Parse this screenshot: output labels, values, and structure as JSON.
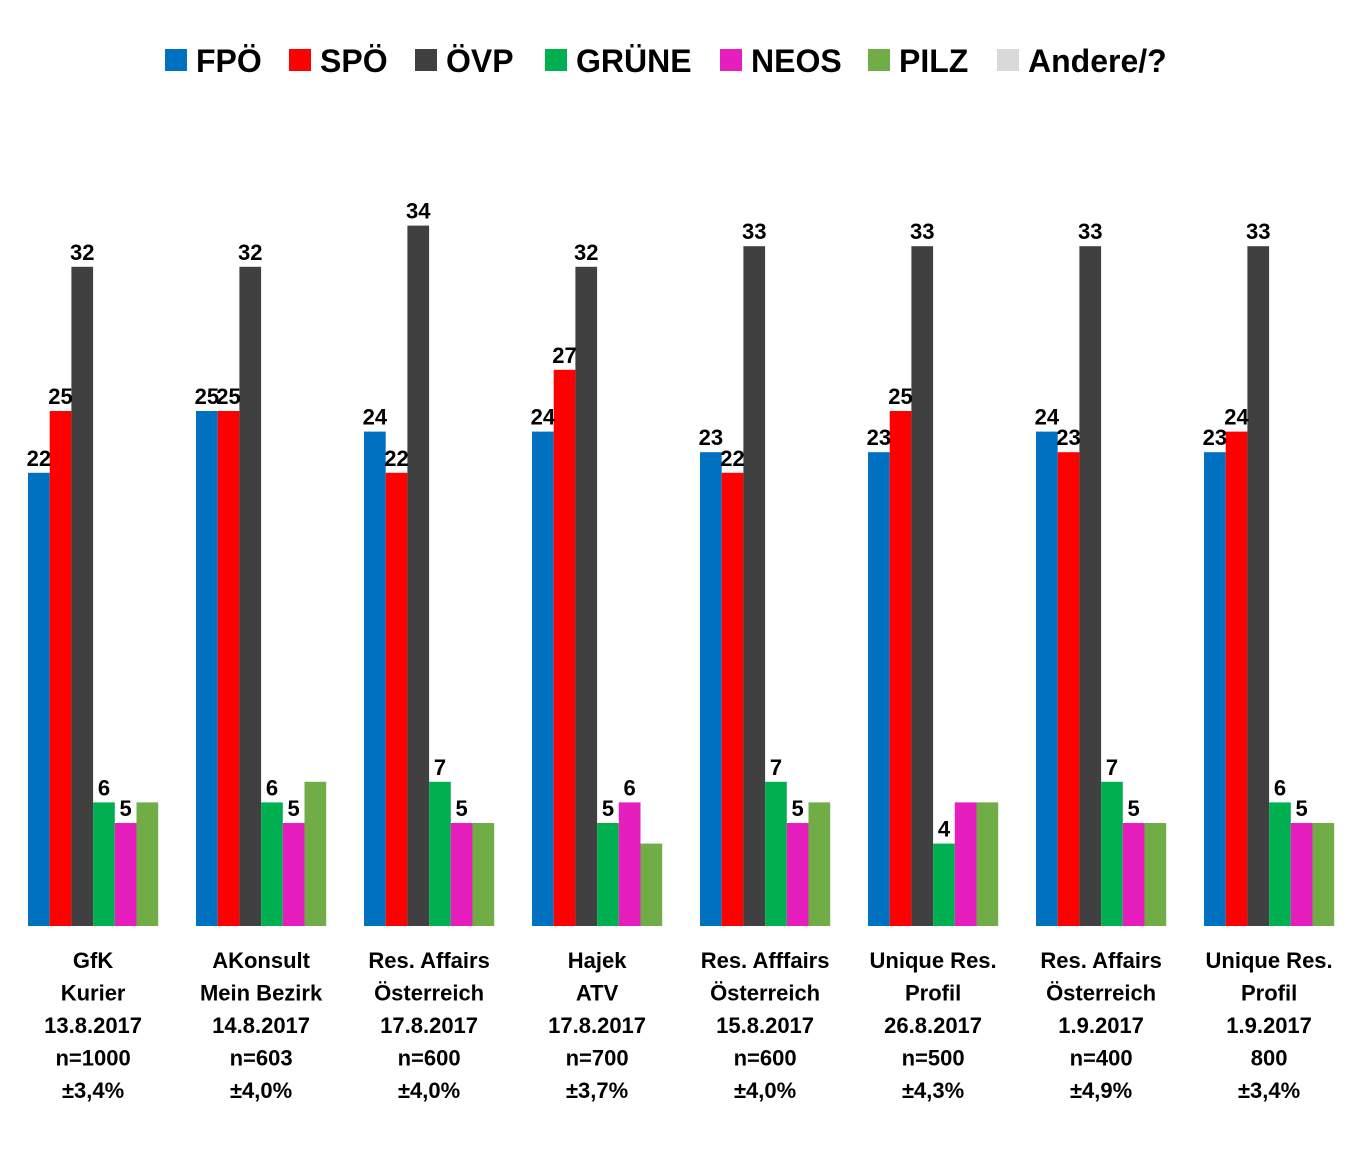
{
  "chart_data": {
    "type": "bar",
    "title": "",
    "xlabel": "",
    "ylabel": "",
    "ylim": [
      0,
      34
    ],
    "grid": false,
    "legend_position": "top",
    "colors": {
      "FPÖ": "#0070C0",
      "SPÖ": "#FF0000",
      "ÖVP": "#404040",
      "GRÜNE": "#00B050",
      "NEOS": "#E61EBE",
      "PILZ": "#70AD47",
      "Andere/?": "#D9D9D9"
    },
    "legend": [
      "FPÖ",
      "SPÖ",
      "ÖVP",
      "GRÜNE",
      "NEOS",
      "PILZ",
      "Andere/?"
    ],
    "categories": [
      [
        "GfK",
        "Kurier",
        "13.8.2017",
        "n=1000",
        "±3,4%"
      ],
      [
        "AKonsult",
        "Mein Bezirk",
        "14.8.2017",
        "n=603",
        "±4,0%"
      ],
      [
        "Res. Affairs",
        "Österreich",
        "17.8.2017",
        "n=600",
        "±4,0%"
      ],
      [
        "Hajek",
        "ATV",
        "17.8.2017",
        "n=700",
        "±3,7%"
      ],
      [
        "Res. Afffairs",
        "Österreich",
        "15.8.2017",
        "n=600",
        "±4,0%"
      ],
      [
        "Unique Res.",
        "Profil",
        "26.8.2017",
        "n=500",
        "±4,3%"
      ],
      [
        "Res. Affairs",
        "Österreich",
        "1.9.2017",
        "n=400",
        "±4,9%"
      ],
      [
        "Unique Res.",
        "Profil",
        "1.9.2017",
        "800",
        "±3,4%"
      ]
    ],
    "series": [
      {
        "name": "FPÖ",
        "values": [
          22,
          25,
          24,
          24,
          23,
          23,
          24,
          23
        ],
        "labeled": [
          true,
          true,
          true,
          true,
          true,
          true,
          true,
          true
        ]
      },
      {
        "name": "SPÖ",
        "values": [
          25,
          25,
          22,
          27,
          22,
          25,
          23,
          24
        ],
        "labeled": [
          true,
          true,
          true,
          true,
          true,
          true,
          true,
          true
        ]
      },
      {
        "name": "ÖVP",
        "values": [
          32,
          32,
          34,
          32,
          33,
          33,
          33,
          33
        ],
        "labeled": [
          true,
          true,
          true,
          true,
          true,
          true,
          true,
          true
        ]
      },
      {
        "name": "GRÜNE",
        "values": [
          6,
          6,
          7,
          5,
          7,
          4,
          7,
          6
        ],
        "labeled": [
          true,
          true,
          true,
          true,
          true,
          true,
          true,
          true
        ]
      },
      {
        "name": "NEOS",
        "values": [
          5,
          5,
          5,
          6,
          5,
          6,
          5,
          5
        ],
        "labeled": [
          true,
          true,
          true,
          true,
          true,
          false,
          true,
          true
        ]
      },
      {
        "name": "PILZ",
        "values": [
          6,
          7,
          5,
          4,
          6,
          6,
          5,
          5
        ],
        "labeled": [
          false,
          false,
          false,
          false,
          false,
          false,
          false,
          false
        ]
      },
      {
        "name": "Andere/?",
        "values": [
          0,
          0,
          0,
          0,
          0,
          0,
          0,
          0
        ],
        "labeled": [
          false,
          false,
          false,
          false,
          false,
          false,
          false,
          false
        ]
      }
    ]
  }
}
